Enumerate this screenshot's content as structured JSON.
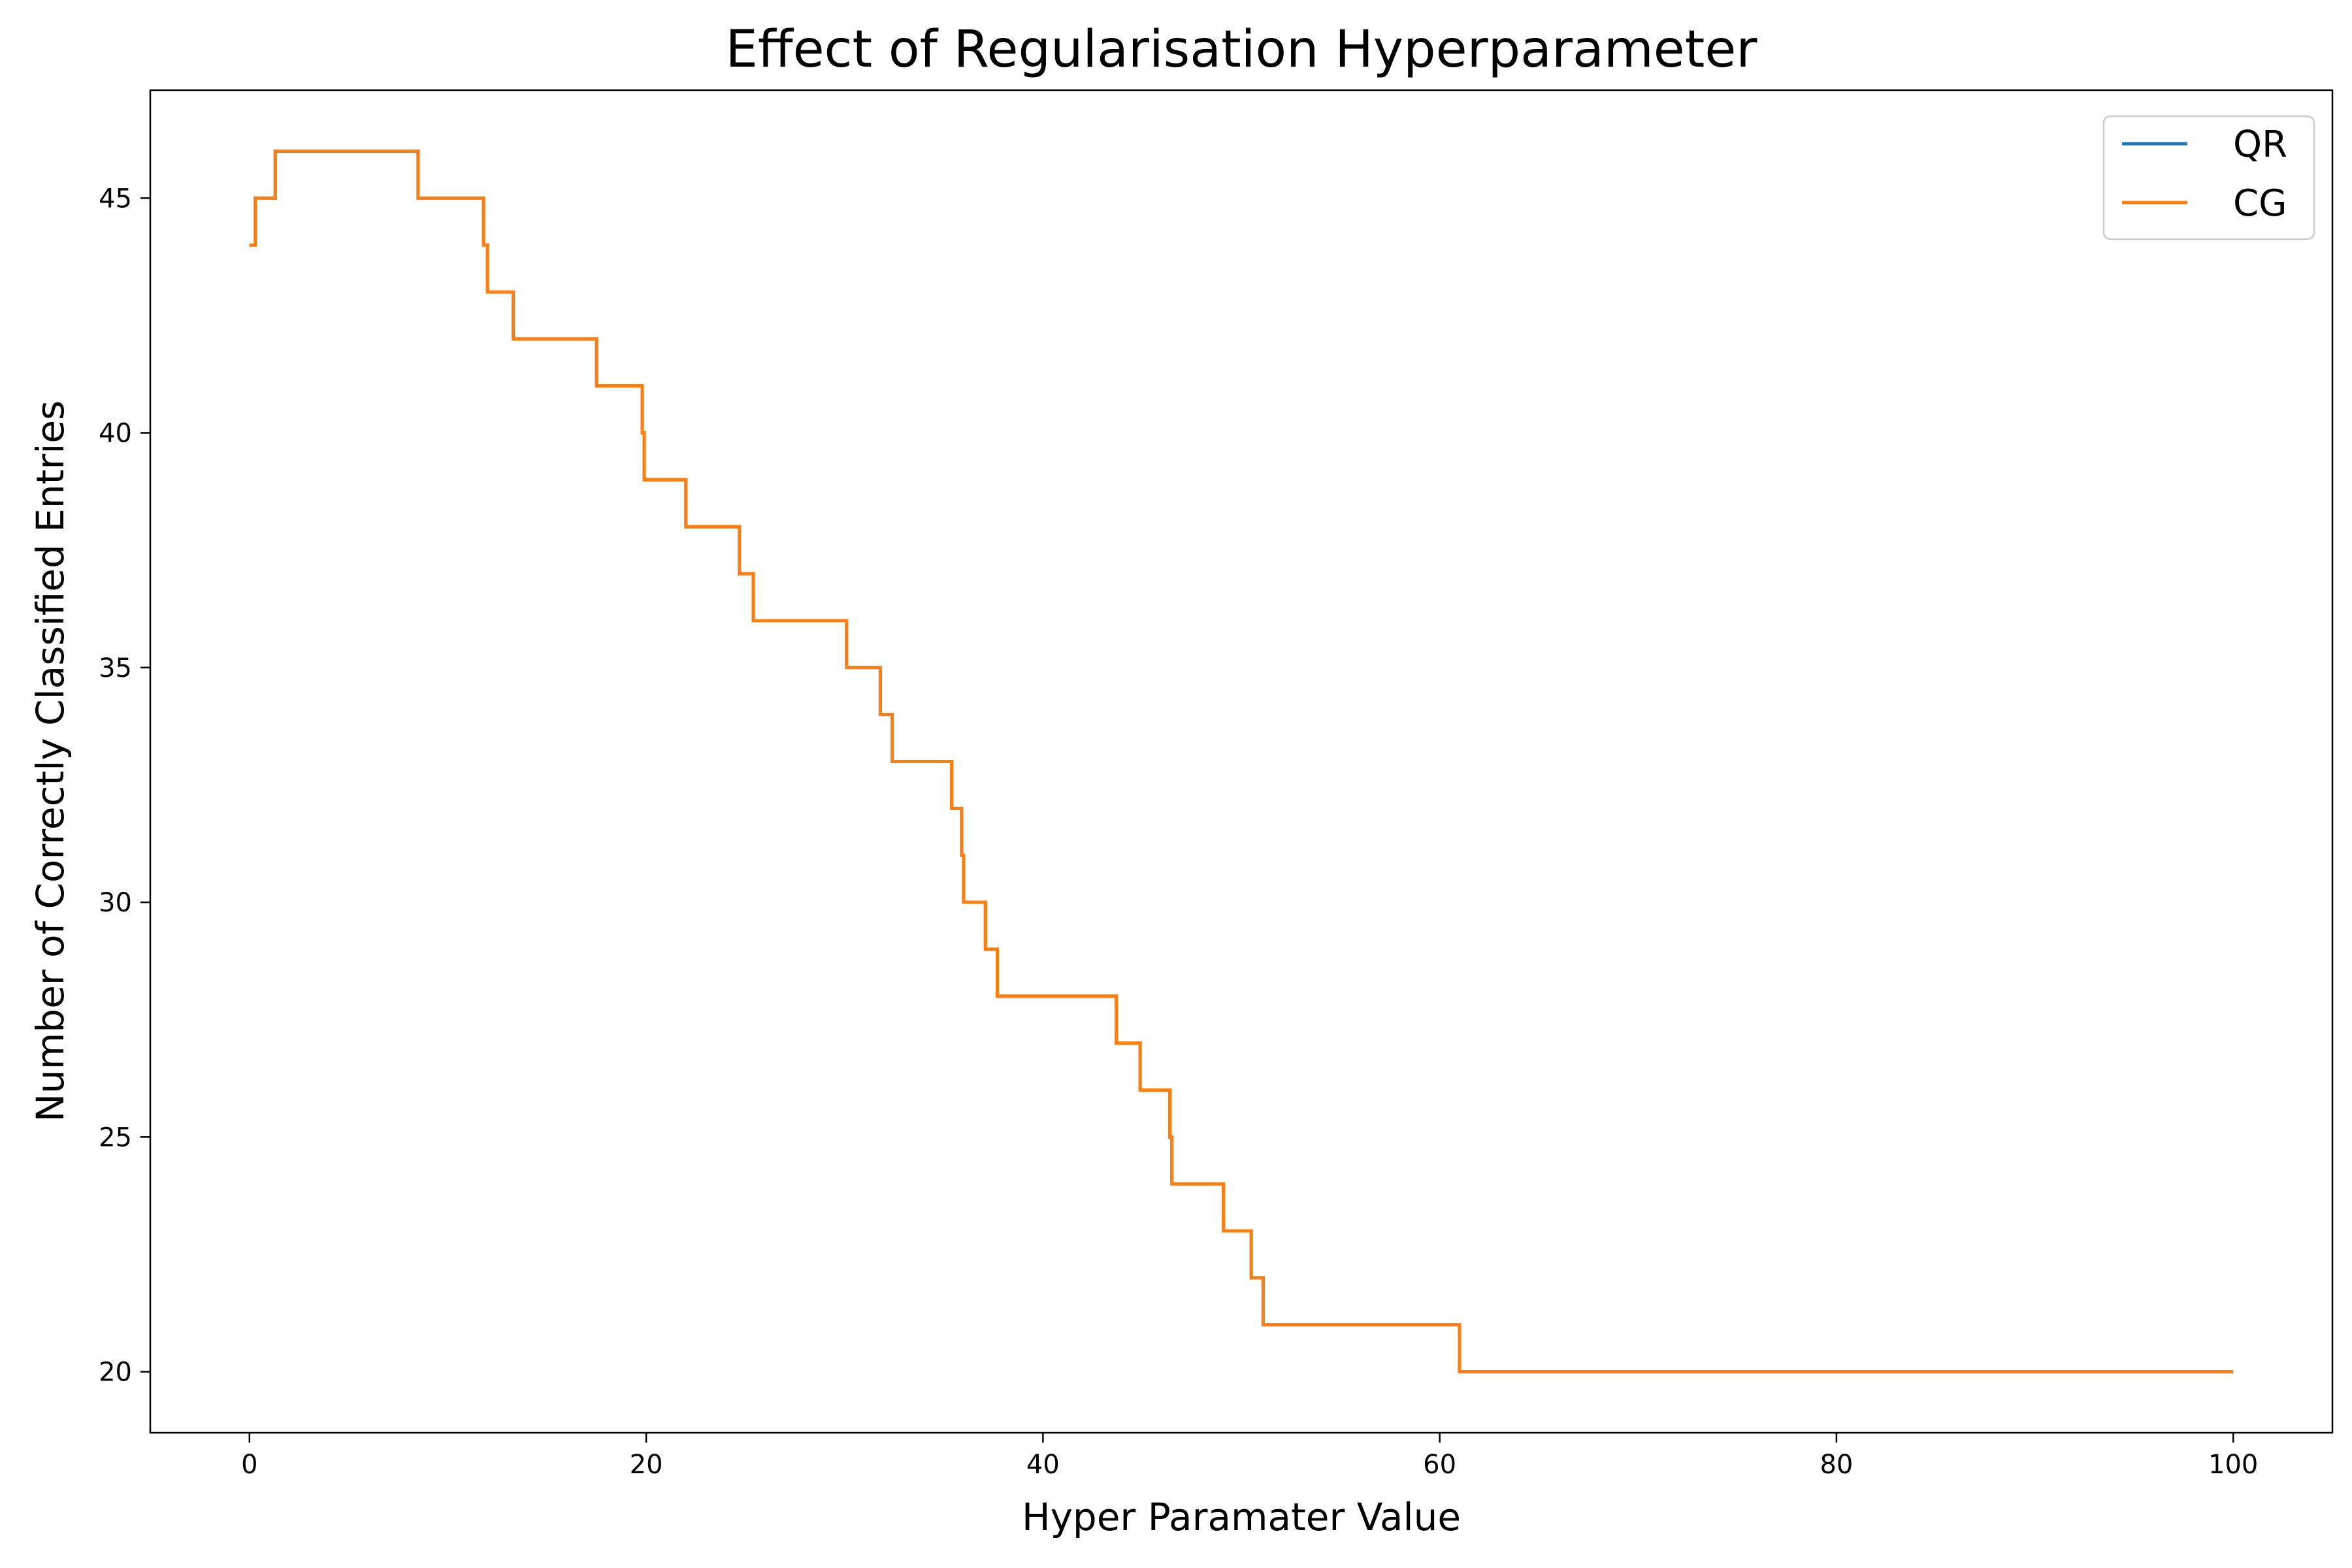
{
  "chart_data": {
    "type": "line",
    "title": "Effect of Regularisation Hyperparameter",
    "xlabel": "Hyper Paramater Value",
    "ylabel": "Number of Correctly Classified Entries",
    "xlim": [
      -5,
      105
    ],
    "ylim": [
      18.7,
      47.3
    ],
    "xticks": [
      0,
      20,
      40,
      60,
      80,
      100
    ],
    "yticks": [
      20,
      25,
      30,
      35,
      40,
      45
    ],
    "grid": false,
    "legend_position": "top-right",
    "drawstyle": "steps-post",
    "series": [
      {
        "name": "QR",
        "color": "#1f77b4",
        "x": [
          0,
          0.3,
          1.3,
          8.5,
          11.8,
          12.0,
          13.3,
          17.5,
          19.8,
          19.9,
          22.0,
          24.7,
          25.4,
          30.1,
          31.8,
          32.4,
          35.4,
          35.9,
          36.0,
          37.1,
          37.7,
          43.7,
          44.9,
          46.4,
          46.5,
          49.1,
          50.5,
          51.1,
          61.0,
          100
        ],
        "y": [
          44,
          45,
          46,
          45,
          44,
          43,
          42,
          41,
          40,
          39,
          38,
          37,
          36,
          35,
          34,
          33,
          32,
          31,
          30,
          29,
          28,
          27,
          26,
          25,
          24,
          23,
          22,
          21,
          20,
          20
        ]
      },
      {
        "name": "CG",
        "color": "#ff7f0e",
        "x": [
          0,
          0.3,
          1.3,
          8.5,
          11.8,
          12.0,
          13.3,
          17.5,
          19.8,
          19.9,
          22.0,
          24.7,
          25.4,
          30.1,
          31.8,
          32.4,
          35.4,
          35.9,
          36.0,
          37.1,
          37.7,
          43.7,
          44.9,
          46.4,
          46.5,
          49.1,
          50.5,
          51.1,
          61.0,
          100
        ],
        "y": [
          44,
          45,
          46,
          45,
          44,
          43,
          42,
          41,
          40,
          39,
          38,
          37,
          36,
          35,
          34,
          33,
          32,
          31,
          30,
          29,
          28,
          27,
          26,
          25,
          24,
          23,
          22,
          21,
          20,
          20
        ]
      }
    ]
  }
}
